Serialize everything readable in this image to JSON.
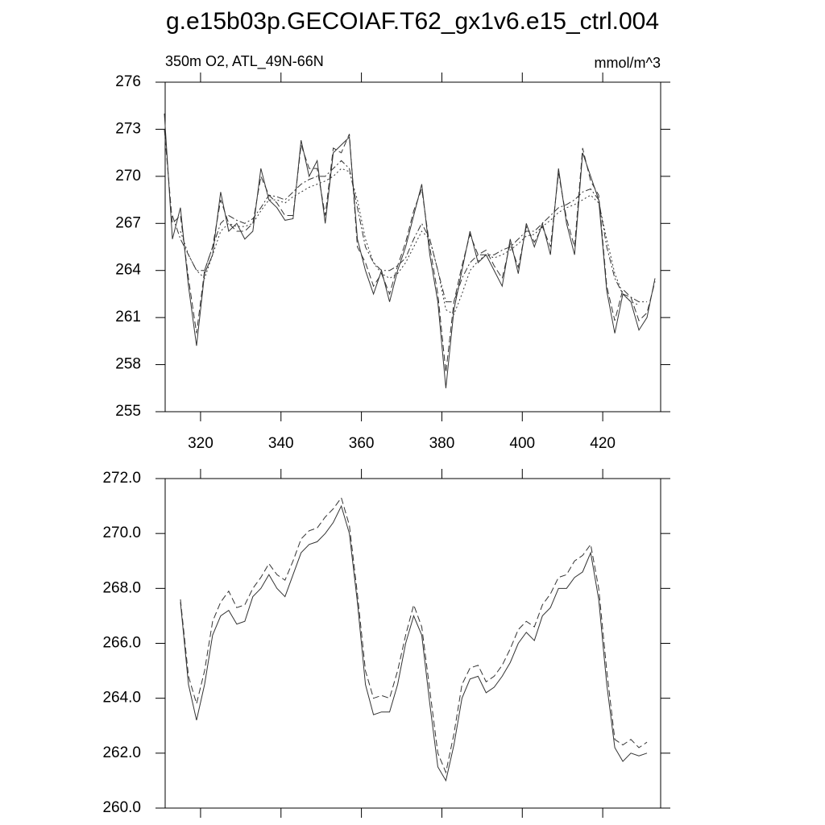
{
  "chart_data": [
    {
      "type": "line",
      "title": "g.e15b03p.GECOIAF.T62_gx1v6.e15_ctrl.004",
      "subtitle": "350m O2, ATL_49N-66N",
      "units": "mmol/m^3",
      "x": [
        311,
        313,
        315,
        317,
        319,
        321,
        323,
        325,
        327,
        329,
        331,
        333,
        335,
        337,
        339,
        341,
        343,
        345,
        347,
        349,
        351,
        353,
        355,
        357,
        359,
        361,
        363,
        365,
        367,
        369,
        371,
        373,
        375,
        377,
        379,
        381,
        383,
        385,
        387,
        389,
        391,
        393,
        395,
        397,
        399,
        401,
        403,
        405,
        407,
        409,
        411,
        413,
        415,
        417,
        419,
        421,
        423,
        425,
        427,
        429,
        431,
        433
      ],
      "series": [
        {
          "color": "#333333",
          "dash": "none",
          "values": [
            274,
            266,
            268,
            263,
            259.2,
            263.8,
            265,
            269,
            266.5,
            267,
            266,
            266.5,
            270.5,
            268.5,
            268,
            267.2,
            267.3,
            272.3,
            270,
            271,
            267,
            271.5,
            272,
            272.5,
            266,
            264,
            262.5,
            264,
            262,
            264,
            265.5,
            267.5,
            269.5,
            265,
            262,
            256.5,
            261.5,
            264,
            266.5,
            264.5,
            265,
            264,
            263,
            266,
            263.8,
            267,
            265.5,
            267,
            265,
            270.5,
            267,
            265,
            271.5,
            270,
            268.5,
            262.7,
            260,
            262.5,
            262,
            260.2,
            261,
            263.5
          ]
        },
        {
          "color": "#333333",
          "dash": "8,4",
          "values": [
            273,
            267,
            267.5,
            263.5,
            260,
            264,
            265.5,
            268.5,
            267,
            266.5,
            266.5,
            267,
            270,
            268.8,
            268.3,
            267.5,
            267.5,
            272,
            270.5,
            270.5,
            267.5,
            271.8,
            271.5,
            272.7,
            265.5,
            264.5,
            263,
            263.8,
            262.5,
            264.3,
            265.8,
            267.8,
            269.2,
            265.5,
            262.5,
            257.5,
            262,
            264.3,
            266.3,
            265,
            265.3,
            264.3,
            263.5,
            265.7,
            264.2,
            266.8,
            265.8,
            266.8,
            265.5,
            270.2,
            267.3,
            265.5,
            271.8,
            269.7,
            268.8,
            263,
            260.8,
            262.8,
            262.3,
            260.8,
            261.3,
            263.3
          ]
        },
        {
          "color": "#333333",
          "dash": "8,3,2,3",
          "values": [
            null,
            267.5,
            266,
            265,
            264,
            264,
            265.5,
            267,
            267.5,
            267.2,
            267,
            267.3,
            268,
            268.8,
            268.7,
            268.5,
            269,
            269.5,
            269.8,
            270,
            270,
            270.5,
            271,
            270.5,
            268,
            265.5,
            264.5,
            264,
            264,
            264.3,
            264.8,
            266,
            267,
            266,
            264,
            262,
            262,
            263.5,
            264.5,
            265,
            265,
            265,
            265.3,
            265.5,
            266,
            266.5,
            266.5,
            267,
            267.5,
            268,
            268.2,
            268.5,
            269,
            269.2,
            268.5,
            265.5,
            263.5,
            262.5,
            262.3,
            262,
            262,
            null
          ]
        },
        {
          "color": "#333333",
          "dash": "2,3",
          "values": [
            null,
            null,
            266.5,
            265,
            264,
            263.5,
            265,
            266.5,
            267,
            266.8,
            266.8,
            267,
            267.8,
            268.5,
            268.5,
            268.3,
            268.7,
            269,
            269.3,
            269.5,
            269.7,
            270,
            270.5,
            270.3,
            268.5,
            266,
            264.5,
            263.8,
            263.5,
            263.8,
            264.5,
            265.5,
            266.5,
            266,
            264,
            261.5,
            261.2,
            262.5,
            264,
            264.6,
            265,
            264.8,
            265,
            265.3,
            265.7,
            266.2,
            266.3,
            266.8,
            267.2,
            267.7,
            268,
            268.2,
            268.5,
            268.8,
            268.3,
            266,
            263.8,
            262.5,
            262,
            261.8,
            null,
            null
          ]
        }
      ],
      "xlim": [
        311.2,
        434.4
      ],
      "xticks": [
        320,
        340,
        360,
        380,
        400,
        420
      ],
      "xtick_labels": true,
      "ylim": [
        255,
        276
      ],
      "yticks": [
        255,
        258,
        261,
        264,
        267,
        270,
        273,
        276
      ]
    },
    {
      "type": "line",
      "x": [
        315,
        317,
        319,
        321,
        323,
        325,
        327,
        329,
        331,
        333,
        335,
        337,
        339,
        341,
        343,
        345,
        347,
        349,
        351,
        353,
        355,
        357,
        359,
        361,
        363,
        365,
        367,
        369,
        371,
        373,
        375,
        377,
        379,
        381,
        383,
        385,
        387,
        389,
        391,
        393,
        395,
        397,
        399,
        401,
        403,
        405,
        407,
        409,
        411,
        413,
        415,
        417,
        419,
        421,
        423,
        425,
        427,
        429,
        431
      ],
      "series": [
        {
          "color": "#333333",
          "dash": "none",
          "values": [
            267.5,
            264.5,
            263.2,
            264.5,
            266.3,
            267,
            267.2,
            266.7,
            266.8,
            267.7,
            268,
            268.5,
            268,
            267.7,
            268.5,
            269.3,
            269.6,
            269.7,
            270,
            270.4,
            271,
            270,
            267.5,
            264.5,
            263.4,
            263.5,
            263.5,
            264.5,
            266,
            267,
            266.3,
            263.8,
            261.5,
            261,
            262.3,
            264,
            264.7,
            264.8,
            264.2,
            264.4,
            264.8,
            265.3,
            266,
            266.4,
            266.1,
            267,
            267.3,
            268,
            268,
            268.4,
            268.6,
            269.3,
            267.6,
            264.5,
            262.2,
            261.7,
            262,
            261.9,
            262
          ]
        },
        {
          "color": "#333333",
          "dash": "8,4",
          "values": [
            267.6,
            264.8,
            263.8,
            265,
            266.8,
            267.5,
            267.9,
            267.3,
            267.4,
            268,
            268.4,
            268.9,
            268.5,
            268.3,
            269,
            269.8,
            270.1,
            270.2,
            270.6,
            270.9,
            271.3,
            270.3,
            267.8,
            265,
            264,
            264.1,
            264,
            265,
            266.3,
            267.4,
            266.6,
            264.3,
            262,
            261.3,
            262.7,
            264.5,
            265.1,
            265.2,
            264.6,
            264.8,
            265.2,
            265.8,
            266.5,
            266.8,
            266.6,
            267.4,
            267.8,
            268.4,
            268.5,
            269,
            269.2,
            269.6,
            268,
            265,
            262.5,
            262.3,
            262.5,
            262.2,
            262.4
          ]
        }
      ],
      "xlim": [
        311.2,
        434.4
      ],
      "xticks": [
        320,
        340,
        360,
        380,
        400,
        420
      ],
      "xtick_labels": false,
      "ylim": [
        260,
        272
      ],
      "yticks": [
        {
          "value": 260,
          "label": "260.0"
        },
        {
          "value": 262,
          "label": "262.0"
        },
        {
          "value": 264,
          "label": "264.0"
        },
        {
          "value": 266,
          "label": "266.0"
        },
        {
          "value": 268,
          "label": "268.0"
        },
        {
          "value": 270,
          "label": "270.0"
        },
        {
          "value": 272,
          "label": "272.0"
        }
      ]
    }
  ]
}
